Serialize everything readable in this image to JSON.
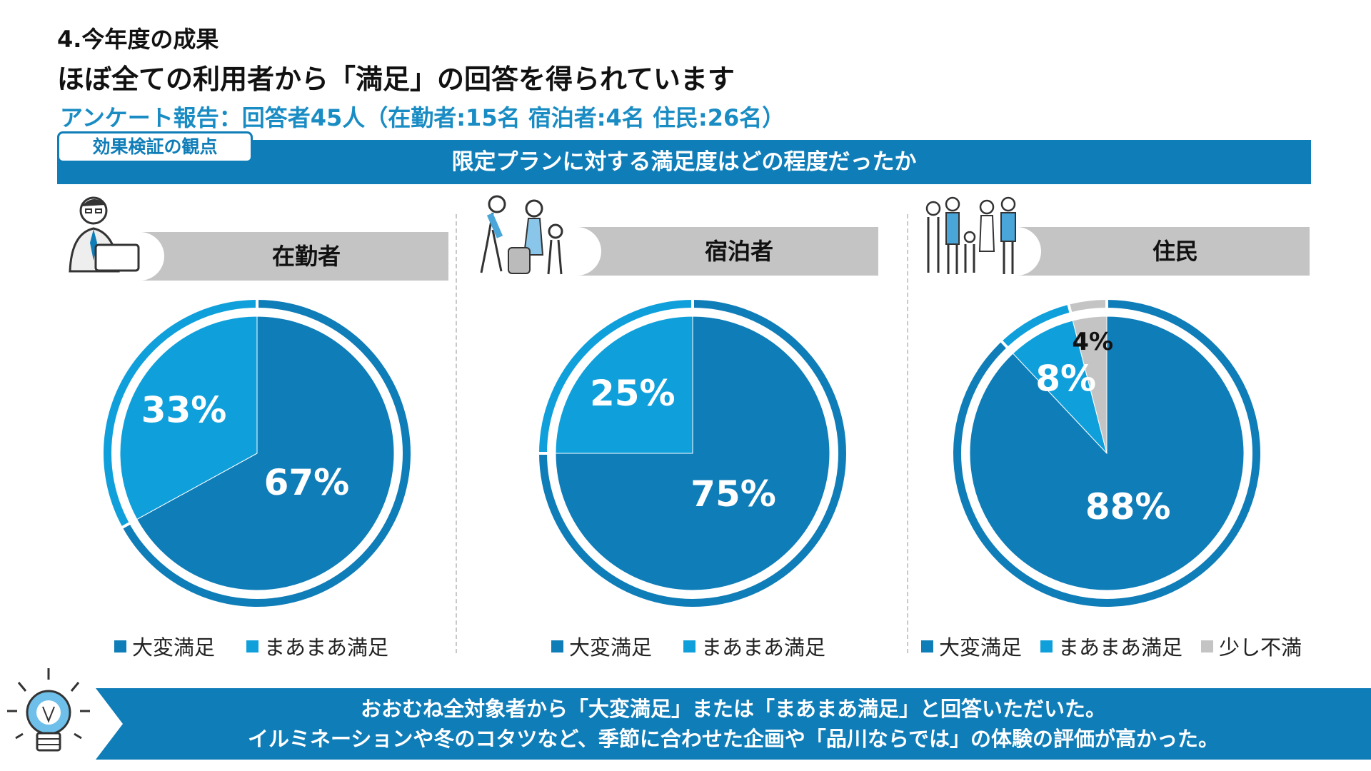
{
  "header": {
    "section_no": "4.今年度の成果",
    "headline": "ほぼ全ての利用者から「満足」の回答を得られています",
    "survey": "アンケート報告：回答者45人（在勤者:15名 宿泊者:4名 住民:26名）"
  },
  "tag_label": "効果検証の観点",
  "banner_label": "限定プランに対する満足度はどの程度だったか",
  "colors": {
    "very_satisfied": "#0f7db8",
    "somewhat_satisfied": "#0fa0dc",
    "slightly_dissatisfied": "#c4c4c4",
    "banner": "#0f7db8",
    "survey_text": "#1a8cc4"
  },
  "chart_data": [
    {
      "type": "pie",
      "title": "在勤者",
      "categories": [
        "大変満足",
        "まあまあ満足"
      ],
      "values": [
        67,
        33
      ],
      "labels": [
        "67%",
        "33%"
      ]
    },
    {
      "type": "pie",
      "title": "宿泊者",
      "categories": [
        "大変満足",
        "まあまあ満足"
      ],
      "values": [
        75,
        25
      ],
      "labels": [
        "75%",
        "25%"
      ]
    },
    {
      "type": "pie",
      "title": "住民",
      "categories": [
        "大変満足",
        "まあまあ満足",
        "少し不満"
      ],
      "values": [
        88,
        8,
        4
      ],
      "labels": [
        "88%",
        "8%",
        "4%"
      ]
    }
  ],
  "footer": {
    "line1": "おおむね全対象者から「大変満足」または「まあまあ満足」と回答いただいた。",
    "line2": "イルミネーションや冬のコタツなど、季節に合わせた企画や「品川ならでは」の体験の評価が高かった。"
  }
}
